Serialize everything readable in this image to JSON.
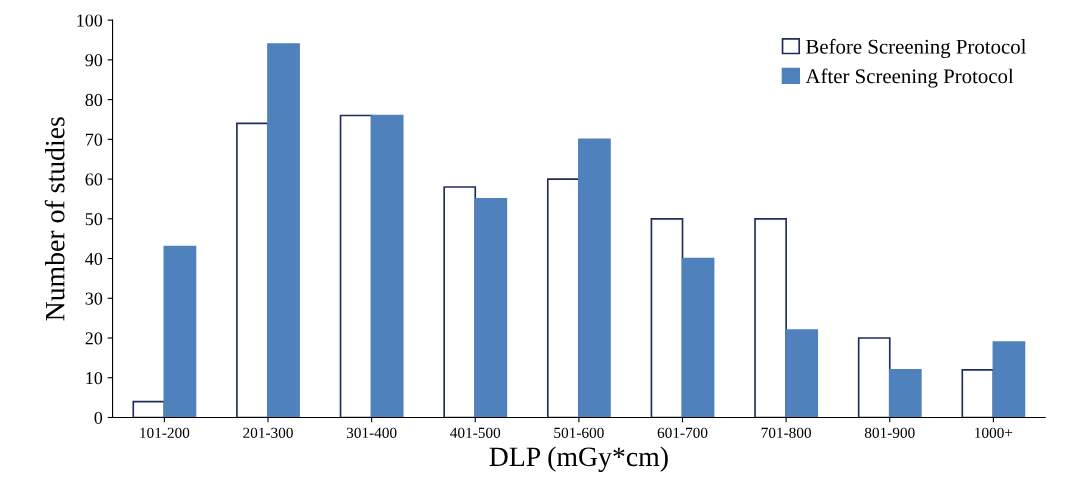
{
  "chart_data": {
    "type": "bar",
    "xlabel": "DLP (mGy*cm)",
    "ylabel": "Number of studies",
    "categories": [
      "101-200",
      "201-300",
      "301-400",
      "401-500",
      "501-600",
      "601-700",
      "701-800",
      "801-900",
      "1000+"
    ],
    "series": [
      {
        "name": "Before Screening Protocol",
        "color": "#ffffff",
        "values": [
          4,
          74,
          76,
          58,
          60,
          50,
          50,
          20,
          12
        ]
      },
      {
        "name": "After Screening Protocol",
        "color": "#4f81bd",
        "values": [
          43,
          94,
          76,
          55,
          70,
          40,
          22,
          12,
          19
        ]
      }
    ],
    "ylim": [
      0,
      100
    ],
    "yticks": [
      0,
      10,
      20,
      30,
      40,
      50,
      60,
      70,
      80,
      90,
      100
    ],
    "grid": false,
    "legend": "top right"
  }
}
